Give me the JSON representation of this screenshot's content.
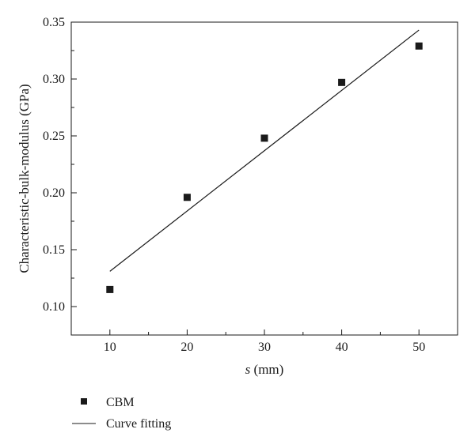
{
  "chart_data": {
    "type": "scatter",
    "xlabel_italic": "s",
    "xlabel_unit": " (mm)",
    "ylabel": "Characteristic-bulk-modulus (GPa)",
    "xlim": [
      5,
      55
    ],
    "ylim": [
      0.075,
      0.35
    ],
    "x_ticks": [
      10,
      20,
      30,
      40,
      50
    ],
    "x_tick_labels": [
      "10",
      "20",
      "30",
      "40",
      "50"
    ],
    "x_minor_ticks": [
      15,
      25,
      35,
      45
    ],
    "y_ticks": [
      0.1,
      0.15,
      0.2,
      0.25,
      0.3,
      0.35
    ],
    "y_tick_labels": [
      "0.10",
      "0.15",
      "0.20",
      "0.25",
      "0.30",
      "0.35"
    ],
    "y_minor_ticks": [
      0.125,
      0.175,
      0.225,
      0.275,
      0.325
    ],
    "series": [
      {
        "name": "CBM",
        "kind": "points",
        "marker": "square",
        "color": "#1a1a1a",
        "x": [
          10,
          20,
          30,
          40,
          50
        ],
        "y": [
          0.115,
          0.196,
          0.248,
          0.297,
          0.329
        ]
      },
      {
        "name": "Curve fitting",
        "kind": "line",
        "color": "#1a1a1a",
        "x": [
          10,
          50
        ],
        "y": [
          0.131,
          0.343
        ]
      }
    ],
    "grid": false,
    "legend_position": "bottom-left"
  }
}
